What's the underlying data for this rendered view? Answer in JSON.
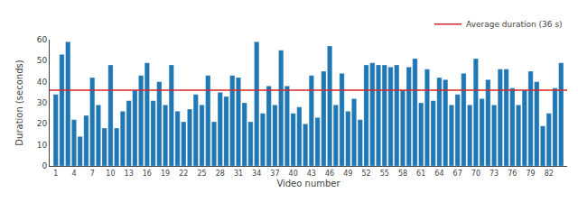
{
  "chart_data": {
    "type": "bar",
    "xlabel": "Video number",
    "ylabel": "Duration (seconds)",
    "x": [
      1,
      2,
      3,
      4,
      5,
      6,
      7,
      8,
      9,
      10,
      11,
      12,
      13,
      14,
      15,
      16,
      17,
      18,
      19,
      20,
      21,
      22,
      23,
      24,
      25,
      26,
      27,
      28,
      29,
      30,
      31,
      32,
      33,
      34,
      35,
      36,
      37,
      38,
      39,
      40,
      41,
      42,
      43,
      44,
      45,
      46,
      47,
      48,
      49,
      50,
      51,
      52,
      53,
      54,
      55,
      56,
      57,
      58,
      59,
      60,
      61,
      62,
      63,
      64,
      65,
      66,
      67,
      68,
      69,
      70,
      71,
      72,
      73,
      74,
      75,
      76,
      77,
      78,
      79,
      80,
      81,
      82,
      83,
      84
    ],
    "values": [
      34,
      53,
      59,
      22,
      14,
      24,
      42,
      29,
      18,
      48,
      18,
      26,
      31,
      36,
      43,
      49,
      31,
      40,
      29,
      48,
      26,
      21,
      27,
      34,
      29,
      43,
      21,
      35,
      33,
      43,
      42,
      30,
      21,
      59,
      25,
      38,
      29,
      55,
      38,
      25,
      28,
      20,
      43,
      23,
      45,
      57,
      29,
      44,
      26,
      32,
      22,
      48,
      49,
      48,
      48,
      47,
      48,
      36,
      47,
      51,
      30,
      46,
      31,
      42,
      41,
      29,
      34,
      44,
      29,
      51,
      32,
      41,
      29,
      46,
      46,
      37,
      29,
      36,
      45,
      40,
      19,
      25,
      37,
      49
    ],
    "color": "#1f77b4",
    "average": {
      "value": 36,
      "name": "Average duration (36 s)",
      "color": "#d62728"
    },
    "xlim": [
      0,
      85
    ],
    "xticks": [
      1,
      4,
      7,
      10,
      13,
      16,
      19,
      22,
      25,
      28,
      31,
      34,
      37,
      40,
      43,
      46,
      49,
      52,
      55,
      58,
      61,
      64,
      67,
      70,
      73,
      76,
      79,
      82
    ],
    "ylim": [
      0,
      60
    ],
    "yticks": [
      0,
      10,
      20,
      30,
      40,
      50,
      60
    ],
    "legend": "upper right",
    "grid": false
  }
}
